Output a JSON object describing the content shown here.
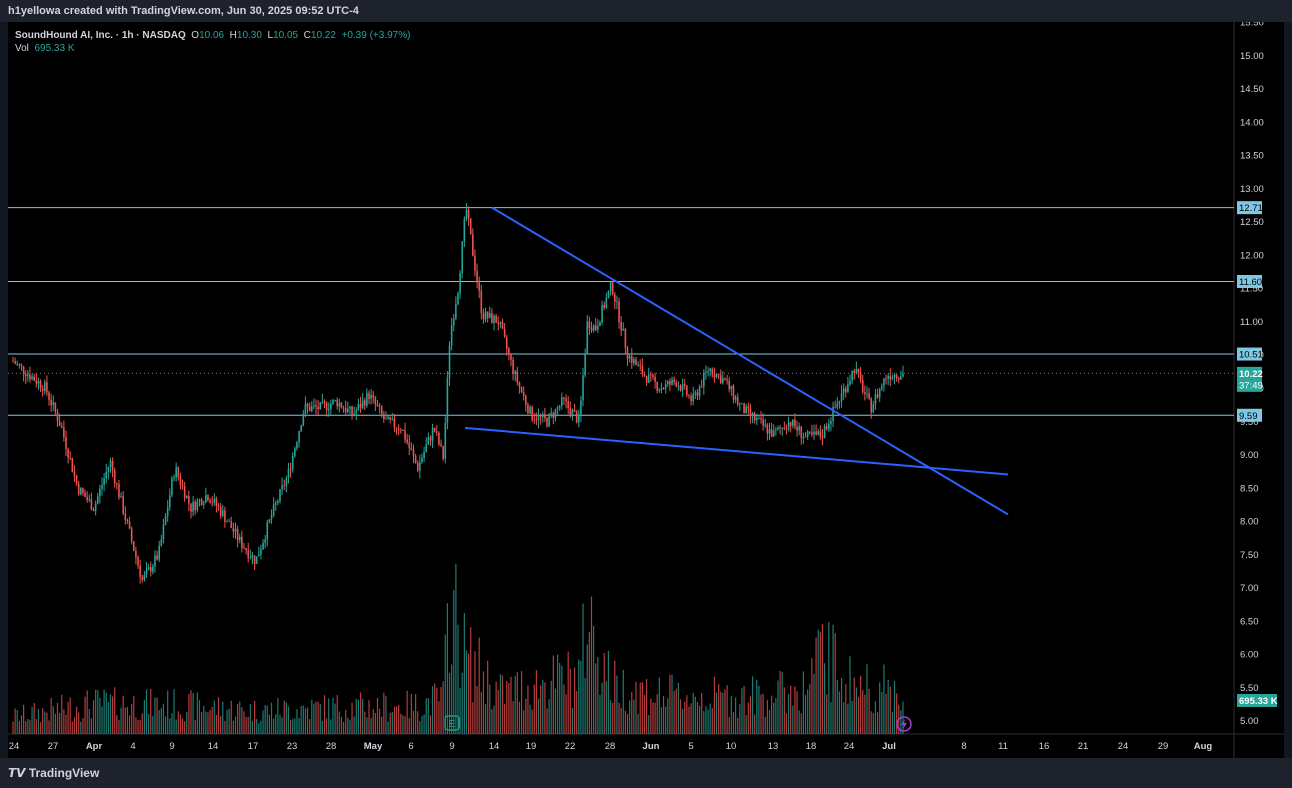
{
  "header": {
    "credit": "h1yellowa created with TradingView.com, Jun 30, 2025 09:52 UTC-4"
  },
  "legend": {
    "symbol": "SoundHound AI, Inc. · 1h · NASDAQ",
    "o_label": "O",
    "o": "10.06",
    "h_label": "H",
    "h": "10.30",
    "l_label": "L",
    "l": "10.05",
    "c_label": "C",
    "c": "10.22",
    "change": "+0.39 (+3.97%)",
    "vol_label": "Vol",
    "vol": "695.33 K"
  },
  "footer": {
    "brand": "TradingView"
  },
  "colors": {
    "bg": "#000000",
    "up": "#26a69a",
    "down": "#ef5350",
    "level": "#7ec8e3",
    "trend": "#2962ff",
    "earnings": "#26a69a",
    "divider": "#a23ad8"
  },
  "chart_data": {
    "type": "candlestick",
    "symbol": "SoundHound AI, Inc.",
    "interval": "1h",
    "exchange": "NASDAQ",
    "y_range": [
      4.8,
      15.5
    ],
    "y_ticks": [
      5.0,
      5.5,
      6.0,
      6.5,
      7.0,
      7.5,
      8.0,
      8.5,
      9.0,
      9.5,
      10.0,
      10.5,
      11.0,
      11.5,
      12.0,
      12.5,
      13.0,
      13.5,
      14.0,
      14.5,
      15.0,
      15.5
    ],
    "x_ticks": [
      "24",
      "27",
      "Apr",
      "4",
      "9",
      "14",
      "17",
      "23",
      "28",
      "May",
      "6",
      "9",
      "14",
      "19",
      "22",
      "28",
      "Jun",
      "5",
      "10",
      "13",
      "18",
      "24",
      "Jul",
      "8",
      "11",
      "16",
      "21",
      "24",
      "29",
      "Aug"
    ],
    "price_path": [
      [
        0,
        10.4
      ],
      [
        2,
        10.0
      ],
      [
        3,
        9.4
      ],
      [
        4,
        8.5
      ],
      [
        5,
        8.2
      ],
      [
        6,
        8.9
      ],
      [
        7,
        8.0
      ],
      [
        8,
        7.1
      ],
      [
        9,
        7.5
      ],
      [
        10,
        8.8
      ],
      [
        11,
        8.2
      ],
      [
        12,
        8.4
      ],
      [
        13,
        8.1
      ],
      [
        14,
        7.7
      ],
      [
        15,
        7.4
      ],
      [
        16,
        8.1
      ],
      [
        17,
        8.7
      ],
      [
        18,
        9.7
      ],
      [
        19,
        9.7
      ],
      [
        20,
        9.8
      ],
      [
        21,
        9.6
      ],
      [
        22,
        9.9
      ],
      [
        23,
        9.5
      ],
      [
        24,
        9.4
      ],
      [
        25,
        8.8
      ],
      [
        26,
        9.4
      ],
      [
        26.6,
        8.95
      ],
      [
        27,
        10.8
      ],
      [
        27.5,
        11.5
      ],
      [
        28,
        12.71
      ],
      [
        28.5,
        11.9
      ],
      [
        29,
        11.1
      ],
      [
        30,
        11.0
      ],
      [
        31,
        10.2
      ],
      [
        32,
        9.6
      ],
      [
        33,
        9.5
      ],
      [
        34,
        9.8
      ],
      [
        35,
        9.5
      ],
      [
        35.5,
        11.0
      ],
      [
        36,
        10.9
      ],
      [
        37,
        11.55
      ],
      [
        38,
        10.5
      ],
      [
        39,
        10.2
      ],
      [
        40,
        10.0
      ],
      [
        41,
        10.1
      ],
      [
        42,
        9.8
      ],
      [
        43,
        10.3
      ],
      [
        44,
        10.1
      ],
      [
        45,
        9.7
      ],
      [
        46,
        9.5
      ],
      [
        47,
        9.3
      ],
      [
        48,
        9.5
      ],
      [
        49,
        9.25
      ],
      [
        50,
        9.3
      ],
      [
        51,
        9.8
      ],
      [
        52,
        10.3
      ],
      [
        53,
        9.7
      ],
      [
        54,
        10.2
      ],
      [
        55,
        10.22
      ]
    ],
    "volume_path": [
      [
        0,
        150
      ],
      [
        5,
        260
      ],
      [
        10,
        250
      ],
      [
        15,
        200
      ],
      [
        20,
        230
      ],
      [
        25,
        240
      ],
      [
        26.6,
        320
      ],
      [
        27,
        1200
      ],
      [
        28,
        650
      ],
      [
        29,
        520
      ],
      [
        30,
        350
      ],
      [
        35,
        500
      ],
      [
        35.5,
        1000
      ],
      [
        37,
        420
      ],
      [
        40,
        330
      ],
      [
        45,
        310
      ],
      [
        49,
        380
      ],
      [
        50,
        700
      ],
      [
        52,
        420
      ],
      [
        55,
        360
      ]
    ],
    "volume_max": 1300,
    "levels": [
      {
        "label": "12.71",
        "value": 12.71
      },
      {
        "label": "11.60",
        "value": 11.6
      },
      {
        "label": "10.51",
        "value": 10.51
      },
      {
        "label": "9.59",
        "value": 9.59
      }
    ],
    "current_price": {
      "label": "10.22",
      "countdown": "37:49",
      "value": 10.22
    },
    "volume_label": {
      "label": "695.33 K",
      "value": 695.33
    },
    "trendlines": [
      {
        "name": "upper",
        "points": [
          [
            "May 14",
            12.71
          ],
          [
            "Aug 11",
            8.1
          ]
        ]
      },
      {
        "name": "lower",
        "points": [
          [
            "May 9",
            9.4
          ],
          [
            "Aug 11",
            8.7
          ]
        ]
      }
    ],
    "earnings_marker": "E"
  }
}
